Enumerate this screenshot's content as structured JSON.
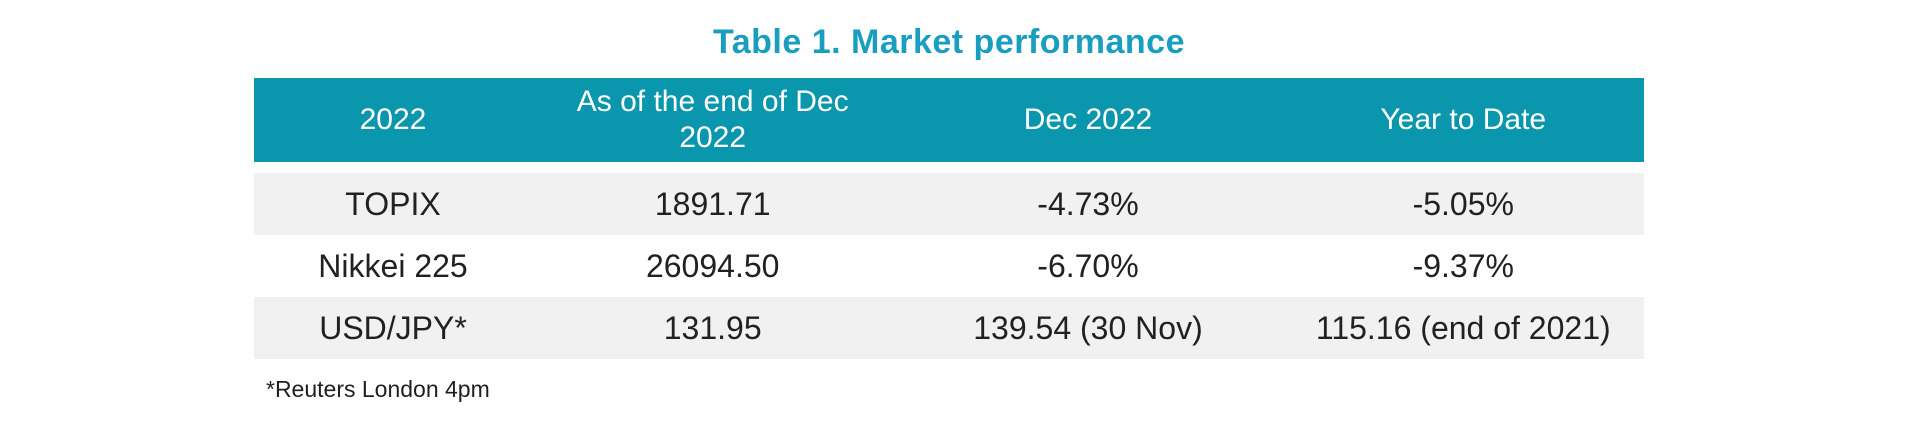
{
  "title": "Table 1. Market performance",
  "table": {
    "columns": [
      {
        "label": "2022"
      },
      {
        "label": "As of the end of Dec 2022"
      },
      {
        "label": "Dec 2022"
      },
      {
        "label": "Year to Date"
      }
    ],
    "rows": [
      {
        "cells": [
          "TOPIX",
          "1891.71",
          "-4.73%",
          "-5.05%"
        ]
      },
      {
        "cells": [
          "Nikkei 225",
          "26094.50",
          "-6.70%",
          "-9.37%"
        ]
      },
      {
        "cells": [
          "USD/JPY*",
          "131.95",
          "139.54 (30 Nov)",
          "115.16 (end of 2021)"
        ]
      }
    ]
  },
  "footnote": "*Reuters London 4pm",
  "colors": {
    "header_bg": "#0a96ac",
    "title_text": "#1a9ec0",
    "row_alt_bg": "#f1f1f1",
    "body_text": "#212121"
  },
  "chart_data": {
    "type": "table",
    "title": "Table 1. Market performance",
    "columns": [
      "2022",
      "As of the end of Dec 2022",
      "Dec 2022",
      "Year to Date"
    ],
    "rows": [
      [
        "TOPIX",
        "1891.71",
        "-4.73%",
        "-5.05%"
      ],
      [
        "Nikkei 225",
        "26094.50",
        "-6.70%",
        "-9.37%"
      ],
      [
        "USD/JPY*",
        "131.95",
        "139.54 (30 Nov)",
        "115.16 (end of 2021)"
      ]
    ],
    "footnote": "*Reuters London 4pm"
  }
}
